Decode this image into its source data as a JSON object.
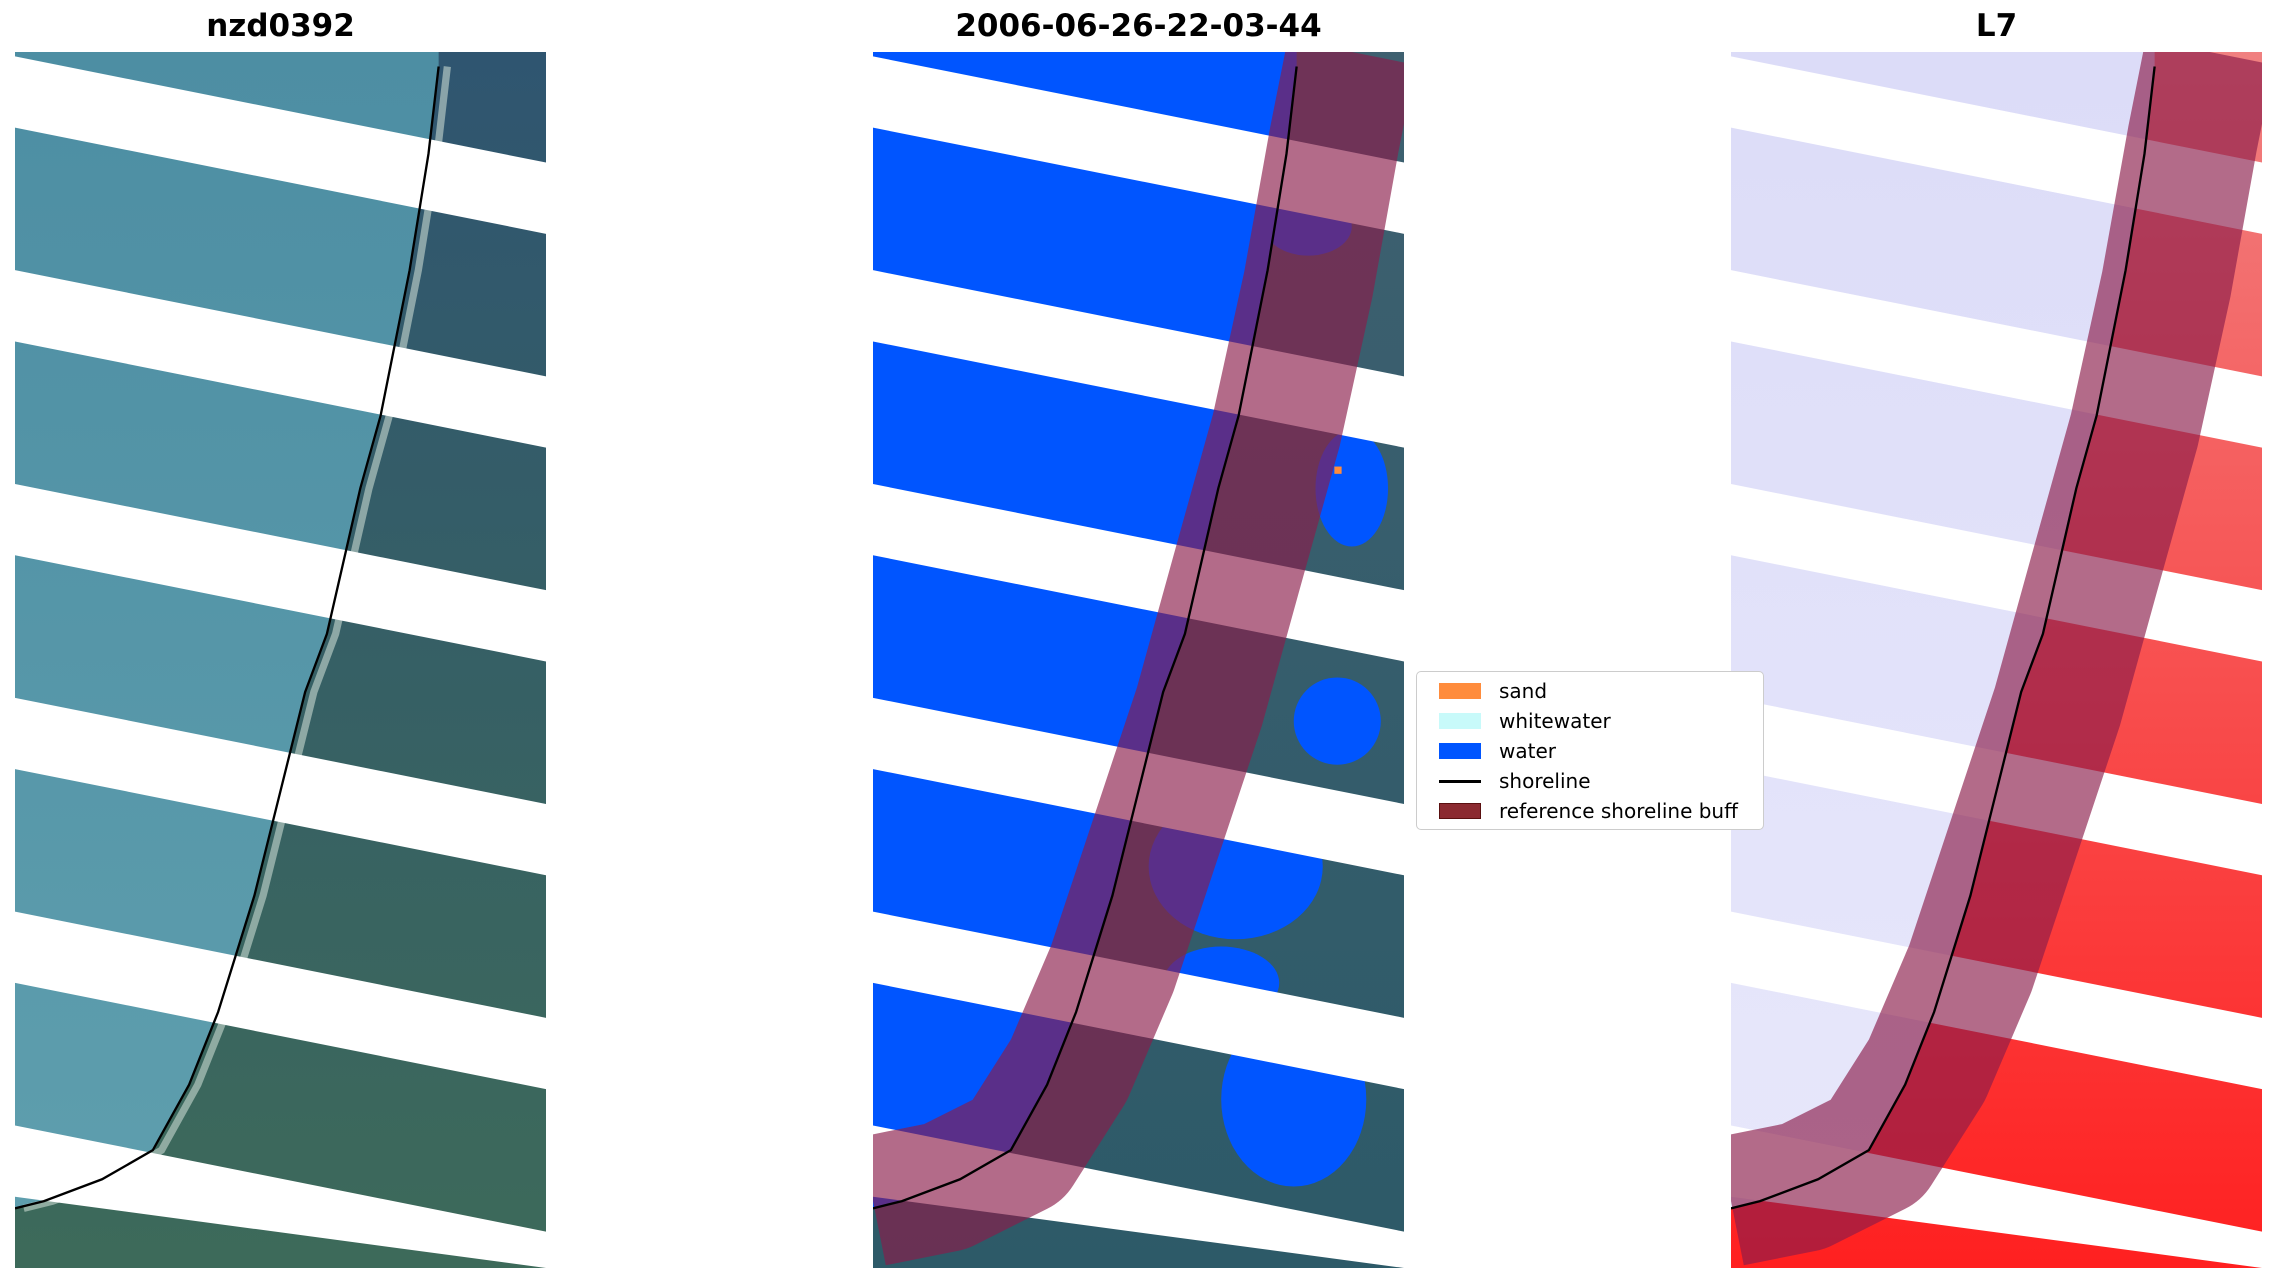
{
  "panels": [
    {
      "title": "nzd0392",
      "kind": "rgb"
    },
    {
      "title": "2006-06-26-22-03-44",
      "kind": "classified"
    },
    {
      "title": "L7",
      "kind": "index"
    }
  ],
  "legend": {
    "items": [
      {
        "label": "sand",
        "color": "#ff8c3c",
        "type": "patch"
      },
      {
        "label": "whitewater",
        "color": "#c8fafa",
        "type": "patch"
      },
      {
        "label": "water",
        "color": "#0055ff",
        "type": "patch"
      },
      {
        "label": "shoreline",
        "color": "#000000",
        "type": "line"
      },
      {
        "label": "reference shoreline buff",
        "color": "#8b2a30",
        "type": "patch"
      }
    ]
  },
  "chart_data": {
    "type": "image-panels",
    "titles": [
      "nzd0392",
      "2006-06-26-22-03-44",
      "L7"
    ],
    "legend_entries": [
      "sand",
      "whitewater",
      "water",
      "shoreline",
      "reference shoreline buff"
    ],
    "legend_placement": "center-right of middle panel"
  }
}
